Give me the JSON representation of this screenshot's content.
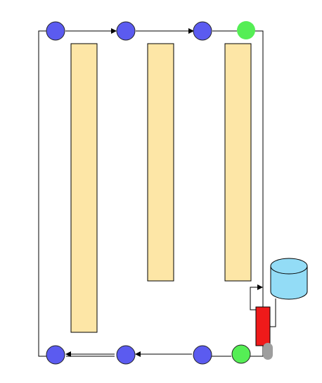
{
  "diagram": {
    "nodes_top": [
      {
        "id": "t1",
        "kind": "waypoint"
      },
      {
        "id": "t2",
        "kind": "waypoint"
      },
      {
        "id": "t3",
        "kind": "waypoint"
      },
      {
        "id": "t4",
        "kind": "endpoint"
      }
    ],
    "nodes_bottom": [
      {
        "id": "b1",
        "kind": "waypoint"
      },
      {
        "id": "b2",
        "kind": "waypoint"
      },
      {
        "id": "b3",
        "kind": "waypoint"
      },
      {
        "id": "b4",
        "kind": "endpoint"
      }
    ],
    "shelves": [
      {
        "id": "shelf-1"
      },
      {
        "id": "shelf-2"
      },
      {
        "id": "shelf-3"
      }
    ],
    "top_flow_direction": "left-to-right",
    "bottom_flow_direction": "right-to-left",
    "storage": {
      "shape": "cylinder"
    },
    "station": {
      "shape": "rectangle"
    },
    "colors": {
      "waypoint": "#5b5bf0",
      "endpoint": "#55ee55",
      "shelf": "#fde6a6",
      "storage": "#93dcf6",
      "station": "#ef1a1a",
      "handle": "#9e9e9e",
      "edge": "#000000"
    }
  }
}
